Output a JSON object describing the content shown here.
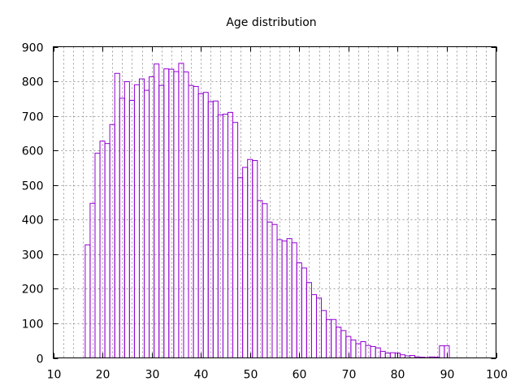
{
  "chart_data": {
    "type": "bar",
    "title": "Age distribution",
    "xlabel": "",
    "ylabel": "",
    "xlim": [
      10,
      100
    ],
    "ylim": [
      0,
      900
    ],
    "xticks": [
      10,
      20,
      30,
      40,
      50,
      60,
      70,
      80,
      90,
      100
    ],
    "yticks": [
      0,
      100,
      200,
      300,
      400,
      500,
      600,
      700,
      800,
      900
    ],
    "x_minor_grid_step": 2,
    "grid": true,
    "legend": "none",
    "bar_color": "#9400d3",
    "bin_width": 1,
    "x": [
      17,
      18,
      19,
      20,
      21,
      22,
      23,
      24,
      25,
      26,
      27,
      28,
      29,
      30,
      31,
      32,
      33,
      34,
      35,
      36,
      37,
      38,
      39,
      40,
      41,
      42,
      43,
      44,
      45,
      46,
      47,
      48,
      49,
      50,
      51,
      52,
      53,
      54,
      55,
      56,
      57,
      58,
      59,
      60,
      61,
      62,
      63,
      64,
      65,
      66,
      67,
      68,
      69,
      70,
      71,
      72,
      73,
      74,
      75,
      76,
      77,
      78,
      79,
      80,
      81,
      82,
      83,
      84,
      85,
      86,
      87,
      88,
      89,
      90
    ],
    "values": [
      327,
      447,
      592,
      627,
      620,
      675,
      823,
      751,
      799,
      745,
      790,
      807,
      774,
      813,
      850,
      788,
      836,
      835,
      828,
      852,
      827,
      788,
      785,
      764,
      768,
      741,
      743,
      703,
      705,
      710,
      681,
      521,
      551,
      574,
      571,
      455,
      446,
      393,
      386,
      342,
      338,
      345,
      333,
      275,
      260,
      218,
      183,
      173,
      137,
      111,
      111,
      89,
      79,
      62,
      52,
      41,
      47,
      36,
      33,
      29,
      19,
      14,
      15,
      14,
      9,
      6,
      7,
      3,
      2,
      1,
      3,
      2,
      35,
      35
    ]
  }
}
